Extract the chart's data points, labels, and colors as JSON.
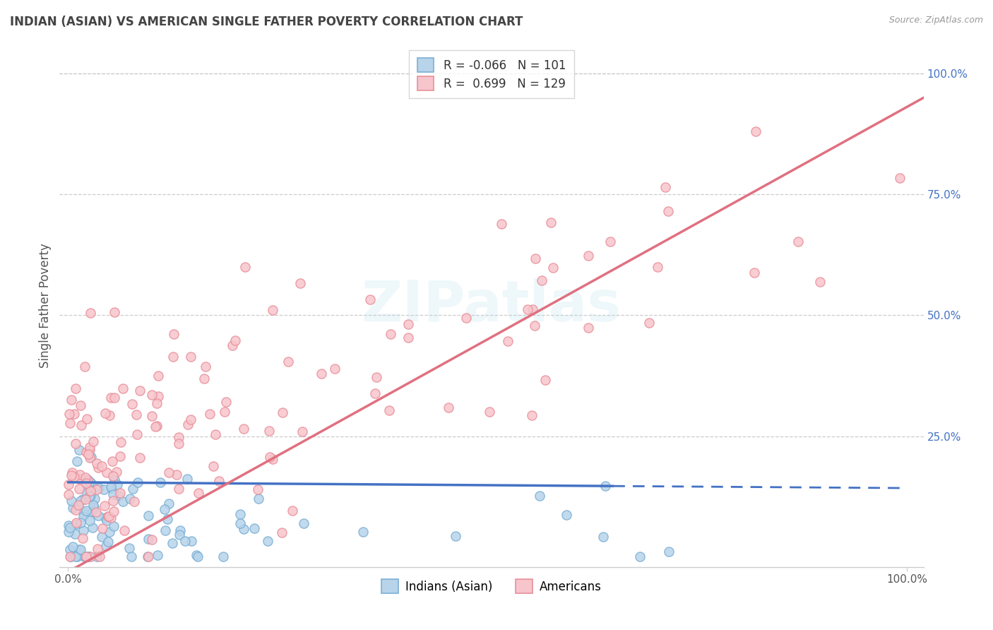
{
  "title": "INDIAN (ASIAN) VS AMERICAN SINGLE FATHER POVERTY CORRELATION CHART",
  "source": "Source: ZipAtlas.com",
  "ylabel": "Single Father Poverty",
  "legend_labels": [
    "Indians (Asian)",
    "Americans"
  ],
  "legend_R": [
    -0.066,
    0.699
  ],
  "legend_N": [
    101,
    129
  ],
  "blue_fill": "#b8d4ea",
  "blue_edge": "#7bafd4",
  "blue_line": "#4472c4",
  "pink_fill": "#f7c5cc",
  "pink_edge": "#e8909a",
  "pink_line": "#e07080",
  "background_color": "#ffffff",
  "grid_color": "#cccccc",
  "title_color": "#444444",
  "watermark": "ZIPatlas",
  "xlim": [
    0.0,
    1.0
  ],
  "ylim": [
    0.0,
    1.0
  ]
}
